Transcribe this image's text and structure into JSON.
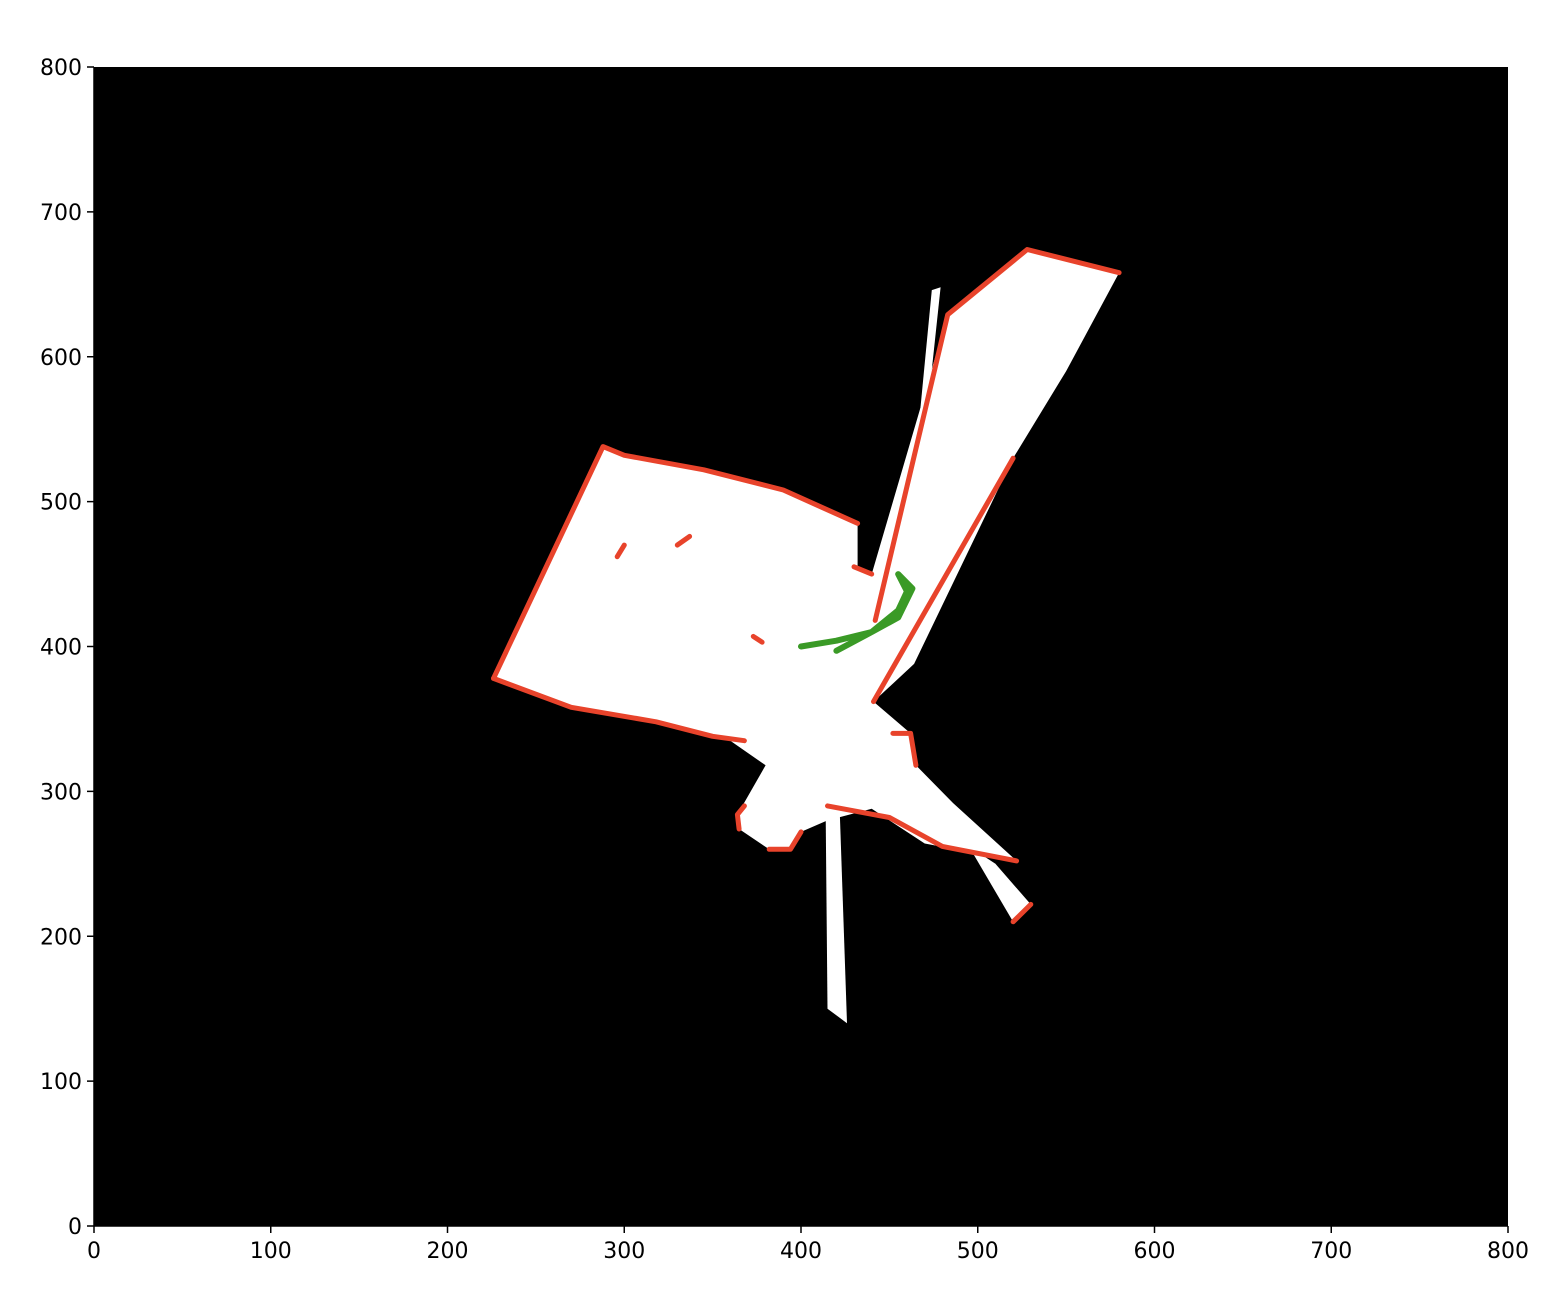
{
  "chart_data": {
    "type": "heatmap",
    "title": "",
    "xlabel": "",
    "ylabel": "",
    "xlim": [
      0,
      800
    ],
    "ylim": [
      0,
      800
    ],
    "x_ticks": [
      "0",
      "100",
      "200",
      "300",
      "400",
      "500",
      "600",
      "700",
      "800"
    ],
    "y_ticks": [
      "0",
      "100",
      "200",
      "300",
      "400",
      "500",
      "600",
      "700",
      "800"
    ],
    "grid": false,
    "legend": "none",
    "colors": {
      "unknown": "#000000",
      "free": "#ffffff",
      "occupied": "#e8432b",
      "trajectory": "#3a9a26"
    },
    "free_regions": [
      [
        [
          226,
          378
        ],
        [
          288,
          538
        ],
        [
          298,
          533
        ],
        [
          345,
          522
        ],
        [
          390,
          508
        ],
        [
          432,
          485
        ],
        [
          432,
          455
        ],
        [
          440,
          450
        ],
        [
          483,
          629
        ],
        [
          528,
          674
        ],
        [
          580,
          658
        ],
        [
          550,
          590
        ],
        [
          520,
          530
        ],
        [
          464,
          388
        ],
        [
          441,
          362
        ],
        [
          462,
          340
        ],
        [
          465,
          318
        ],
        [
          486,
          292
        ],
        [
          522,
          252
        ],
        [
          470,
          264
        ],
        [
          440,
          288
        ],
        [
          415,
          280
        ],
        [
          400,
          272
        ],
        [
          394,
          260
        ],
        [
          382,
          260
        ],
        [
          365,
          274
        ],
        [
          364,
          284
        ],
        [
          380,
          318
        ],
        [
          360,
          335
        ],
        [
          318,
          348
        ],
        [
          270,
          358
        ],
        [
          226,
          378
        ]
      ],
      [
        [
          474,
          646
        ],
        [
          479,
          648
        ],
        [
          470,
          545
        ],
        [
          466,
          545
        ]
      ],
      [
        [
          414,
          283
        ],
        [
          422,
          283
        ],
        [
          426,
          140
        ],
        [
          415,
          150
        ]
      ],
      [
        [
          495,
          262
        ],
        [
          510,
          250
        ],
        [
          530,
          222
        ],
        [
          520,
          210
        ]
      ]
    ],
    "occupied_edges": [
      [
        [
          226,
          378
        ],
        [
          288,
          538
        ],
        [
          300,
          532
        ],
        [
          345,
          522
        ],
        [
          390,
          508
        ],
        [
          432,
          485
        ]
      ],
      [
        [
          226,
          378
        ],
        [
          270,
          358
        ],
        [
          318,
          348
        ],
        [
          350,
          338
        ],
        [
          368,
          335
        ]
      ],
      [
        [
          430,
          455
        ],
        [
          440,
          450
        ]
      ],
      [
        [
          442,
          418
        ],
        [
          483,
          629
        ],
        [
          528,
          674
        ],
        [
          580,
          658
        ]
      ],
      [
        [
          441,
          362
        ],
        [
          520,
          530
        ]
      ],
      [
        [
          452,
          340
        ],
        [
          462,
          340
        ],
        [
          465,
          318
        ]
      ],
      [
        [
          365,
          274
        ],
        [
          364,
          284
        ],
        [
          368,
          290
        ]
      ],
      [
        [
          382,
          260
        ],
        [
          394,
          260
        ],
        [
          400,
          272
        ]
      ],
      [
        [
          415,
          290
        ],
        [
          450,
          282
        ],
        [
          480,
          262
        ],
        [
          522,
          252
        ]
      ],
      [
        [
          296,
          462
        ],
        [
          300,
          470
        ]
      ],
      [
        [
          330,
          470
        ],
        [
          337,
          476
        ]
      ],
      [
        [
          373,
          407
        ],
        [
          378,
          403
        ]
      ],
      [
        [
          520,
          210
        ],
        [
          530,
          222
        ]
      ]
    ],
    "trajectory": [
      [
        400,
        400
      ],
      [
        420,
        404
      ],
      [
        440,
        410
      ],
      [
        455,
        420
      ],
      [
        463,
        440
      ],
      [
        455,
        450
      ],
      [
        460,
        438
      ],
      [
        455,
        425
      ],
      [
        440,
        410
      ],
      [
        420,
        397
      ]
    ]
  }
}
